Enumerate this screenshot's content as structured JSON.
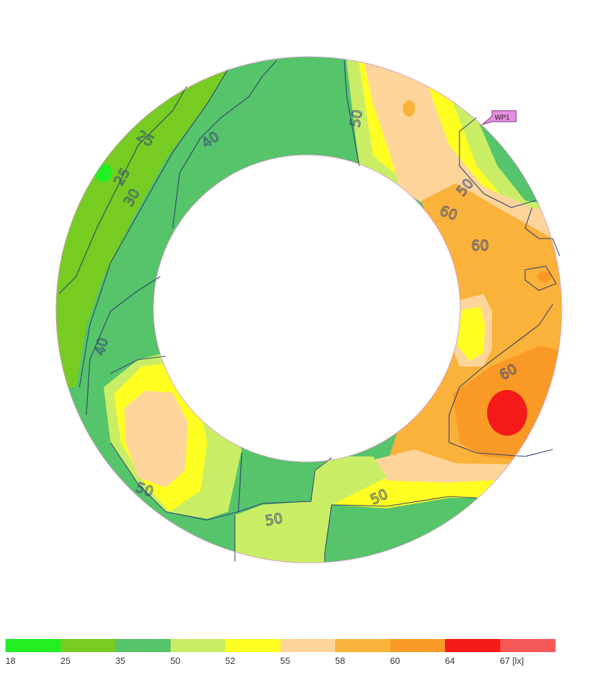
{
  "marker": {
    "label": "WP1",
    "color": "#e48ee0"
  },
  "contour_labels": [
    {
      "id": "c25a",
      "text": "25"
    },
    {
      "id": "c25b",
      "text": "25"
    },
    {
      "id": "c30",
      "text": "30"
    },
    {
      "id": "c40a",
      "text": "40"
    },
    {
      "id": "c40b",
      "text": "40"
    },
    {
      "id": "c50a",
      "text": "50"
    },
    {
      "id": "c50b",
      "text": "50"
    },
    {
      "id": "c50c",
      "text": "50"
    },
    {
      "id": "c50d",
      "text": "50"
    },
    {
      "id": "c50e",
      "text": "50"
    },
    {
      "id": "c60a",
      "text": "60"
    },
    {
      "id": "c60b",
      "text": "60"
    },
    {
      "id": "c60c",
      "text": "60"
    }
  ],
  "legend": {
    "colors": [
      "#22ee22",
      "#77cc22",
      "#55c46a",
      "#c9ee66",
      "#ffff22",
      "#fdd59a",
      "#fbb23a",
      "#f99a26",
      "#f51919",
      "#f65858"
    ],
    "ticks": [
      "18",
      "25",
      "35",
      "50",
      "52",
      "55",
      "58",
      "60",
      "64",
      "67 [lx]"
    ]
  }
}
